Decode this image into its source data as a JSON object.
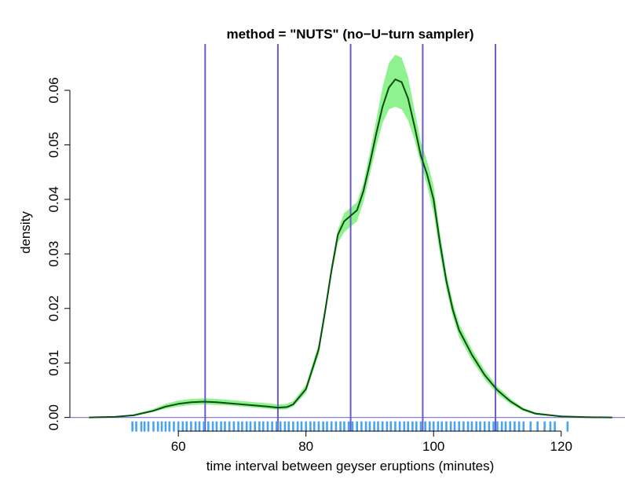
{
  "chart_data": {
    "type": "line",
    "title": "method = \"NUTS\" (no−U−turn sampler)",
    "xlabel": "time interval between geyser eruptions (minutes)",
    "ylabel": "density",
    "xlim": [
      43,
      130
    ],
    "ylim": [
      -0.0025,
      0.0685
    ],
    "x_ticks": [
      60,
      80,
      100,
      120
    ],
    "x_tick_labels": [
      "60",
      "80",
      "100",
      "120"
    ],
    "y_ticks": [
      0.0,
      0.01,
      0.02,
      0.03,
      0.04,
      0.05,
      0.06
    ],
    "y_tick_labels": [
      "0.00",
      "0.01",
      "0.02",
      "0.03",
      "0.04",
      "0.05",
      "0.06"
    ],
    "grid": false,
    "legend": "none",
    "baseline_y": 0.0,
    "vertical_lines_x": [
      64.2,
      75.6,
      87.0,
      98.3,
      109.7
    ],
    "density_estimate": {
      "x": [
        46,
        50,
        53,
        56,
        58,
        60,
        62,
        64,
        66,
        68,
        70,
        72,
        74,
        75.6,
        77,
        78,
        80,
        82,
        83,
        84,
        85,
        86,
        87,
        88,
        89,
        90,
        91,
        92,
        93,
        94,
        95,
        96,
        97,
        98,
        99,
        100,
        101,
        102,
        103,
        104,
        106,
        108,
        110,
        112,
        114,
        116,
        120,
        124,
        128
      ],
      "y": [
        0.0,
        0.0001,
        0.0004,
        0.0012,
        0.002,
        0.0025,
        0.0028,
        0.0029,
        0.0028,
        0.0026,
        0.0024,
        0.0022,
        0.002,
        0.0018,
        0.0019,
        0.0024,
        0.0052,
        0.0125,
        0.0195,
        0.027,
        0.0335,
        0.036,
        0.037,
        0.038,
        0.0415,
        0.0465,
        0.052,
        0.057,
        0.0605,
        0.062,
        0.0615,
        0.0585,
        0.0535,
        0.048,
        0.0445,
        0.04,
        0.032,
        0.025,
        0.0198,
        0.016,
        0.0115,
        0.0078,
        0.005,
        0.003,
        0.0015,
        0.0007,
        0.0002,
        5e-05,
        0.0
      ],
      "lower": [
        0.0,
        0.0,
        0.0003,
        0.001,
        0.0016,
        0.002,
        0.0023,
        0.0024,
        0.0023,
        0.0022,
        0.002,
        0.0018,
        0.0016,
        0.0014,
        0.0015,
        0.002,
        0.0045,
        0.0115,
        0.0185,
        0.026,
        0.032,
        0.034,
        0.035,
        0.036,
        0.0395,
        0.0445,
        0.0495,
        0.054,
        0.0565,
        0.057,
        0.0565,
        0.0545,
        0.051,
        0.0465,
        0.0425,
        0.0375,
        0.03,
        0.0235,
        0.0185,
        0.0148,
        0.0105,
        0.007,
        0.0043,
        0.0025,
        0.0012,
        0.0005,
        0.0001,
        0.0,
        0.0
      ],
      "upper": [
        0.0,
        0.0002,
        0.0006,
        0.0015,
        0.0025,
        0.0031,
        0.0034,
        0.0035,
        0.0034,
        0.0032,
        0.003,
        0.0028,
        0.0026,
        0.0024,
        0.0025,
        0.003,
        0.006,
        0.0135,
        0.0205,
        0.028,
        0.0345,
        0.0375,
        0.0385,
        0.0395,
        0.043,
        0.0485,
        0.0545,
        0.0605,
        0.065,
        0.0665,
        0.066,
        0.0625,
        0.0565,
        0.0505,
        0.047,
        0.0425,
        0.034,
        0.0265,
        0.0212,
        0.0172,
        0.0125,
        0.0087,
        0.0057,
        0.0035,
        0.0018,
        0.0009,
        0.0003,
        0.0001,
        0.0
      ]
    },
    "rug_x": [
      52.8,
      53.4,
      54.2,
      54.7,
      55.3,
      56.1,
      56.8,
      57.4,
      58.0,
      58.6,
      59.3,
      60.0,
      60.7,
      61.3,
      62.0,
      62.7,
      63.3,
      64.0,
      64.7,
      65.4,
      66.0,
      66.7,
      67.3,
      68.0,
      68.7,
      69.4,
      70.0,
      70.7,
      71.3,
      72.0,
      72.7,
      73.3,
      74.0,
      74.7,
      75.4,
      76.0,
      76.7,
      77.3,
      78.0,
      78.7,
      79.3,
      80.0,
      80.7,
      81.3,
      82.0,
      82.7,
      83.3,
      84.0,
      84.7,
      85.4,
      86.0,
      86.7,
      87.3,
      88.0,
      88.7,
      89.4,
      90.0,
      90.7,
      91.3,
      92.0,
      92.7,
      93.3,
      94.0,
      94.7,
      95.4,
      96.0,
      96.7,
      97.3,
      98.0,
      98.7,
      99.4,
      100.0,
      100.7,
      101.3,
      102.0,
      102.7,
      103.3,
      104.0,
      104.7,
      105.4,
      106.0,
      106.7,
      107.3,
      108.0,
      108.7,
      109.4,
      110.0,
      110.7,
      111.3,
      112.0,
      112.7,
      113.4,
      114.1,
      115.2,
      116.3,
      117.4,
      118.3,
      119.0,
      121.0
    ],
    "colors": {
      "density_line": "#0d4d12",
      "confidence_band": "#8ef28e",
      "vertical_lines": "#6a5acd",
      "baseline": "#8080e0",
      "rug": "#4aa3ee",
      "axis": "#000000"
    }
  }
}
